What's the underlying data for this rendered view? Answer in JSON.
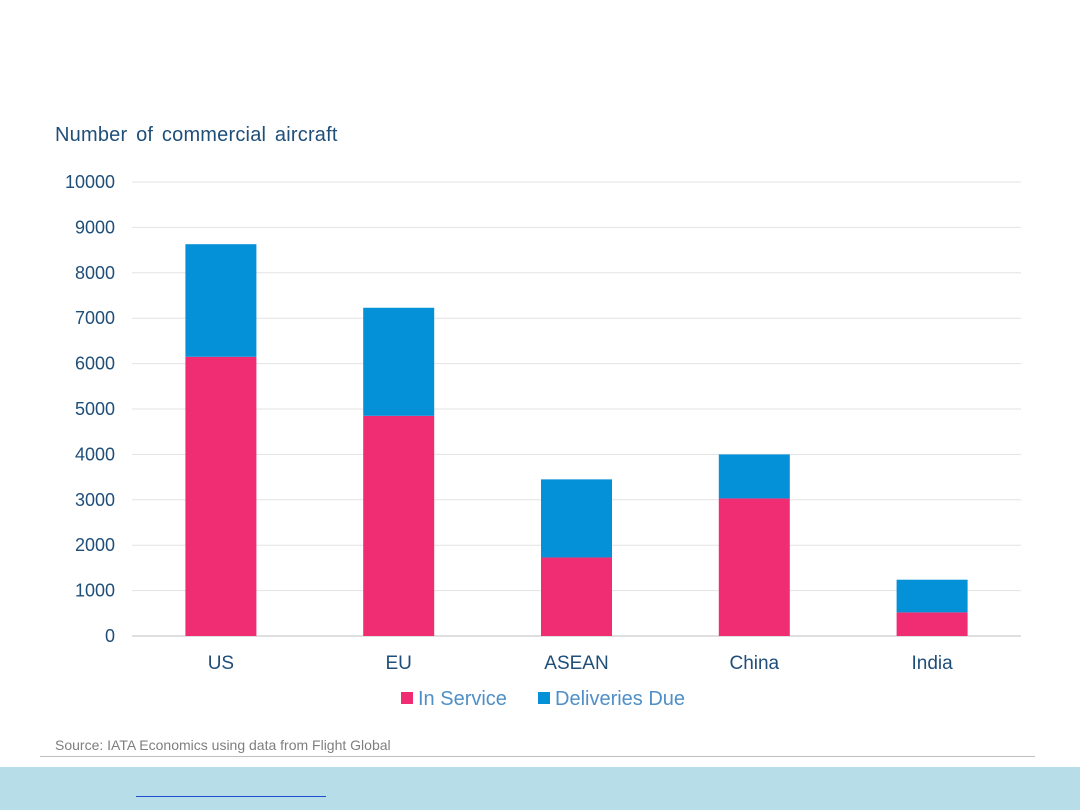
{
  "chart_data": {
    "type": "bar",
    "stacked": true,
    "ylabel": "Number of commercial aircraft",
    "categories": [
      "US",
      "EU",
      "ASEAN",
      "China",
      "India"
    ],
    "ylim": [
      0,
      10000
    ],
    "yticks": [
      0,
      1000,
      2000,
      3000,
      4000,
      5000,
      6000,
      7000,
      8000,
      9000,
      10000
    ],
    "grid": true,
    "legend_position": "bottom",
    "series": [
      {
        "name": "In Service",
        "color": "#f02d72",
        "values": [
          6150,
          4850,
          1730,
          3030,
          520
        ]
      },
      {
        "name": "Deliveries Due",
        "color": "#0591d8",
        "values": [
          2480,
          2380,
          1720,
          970,
          720
        ]
      }
    ]
  },
  "source": "Source: IATA Economics using data from Flight Global"
}
